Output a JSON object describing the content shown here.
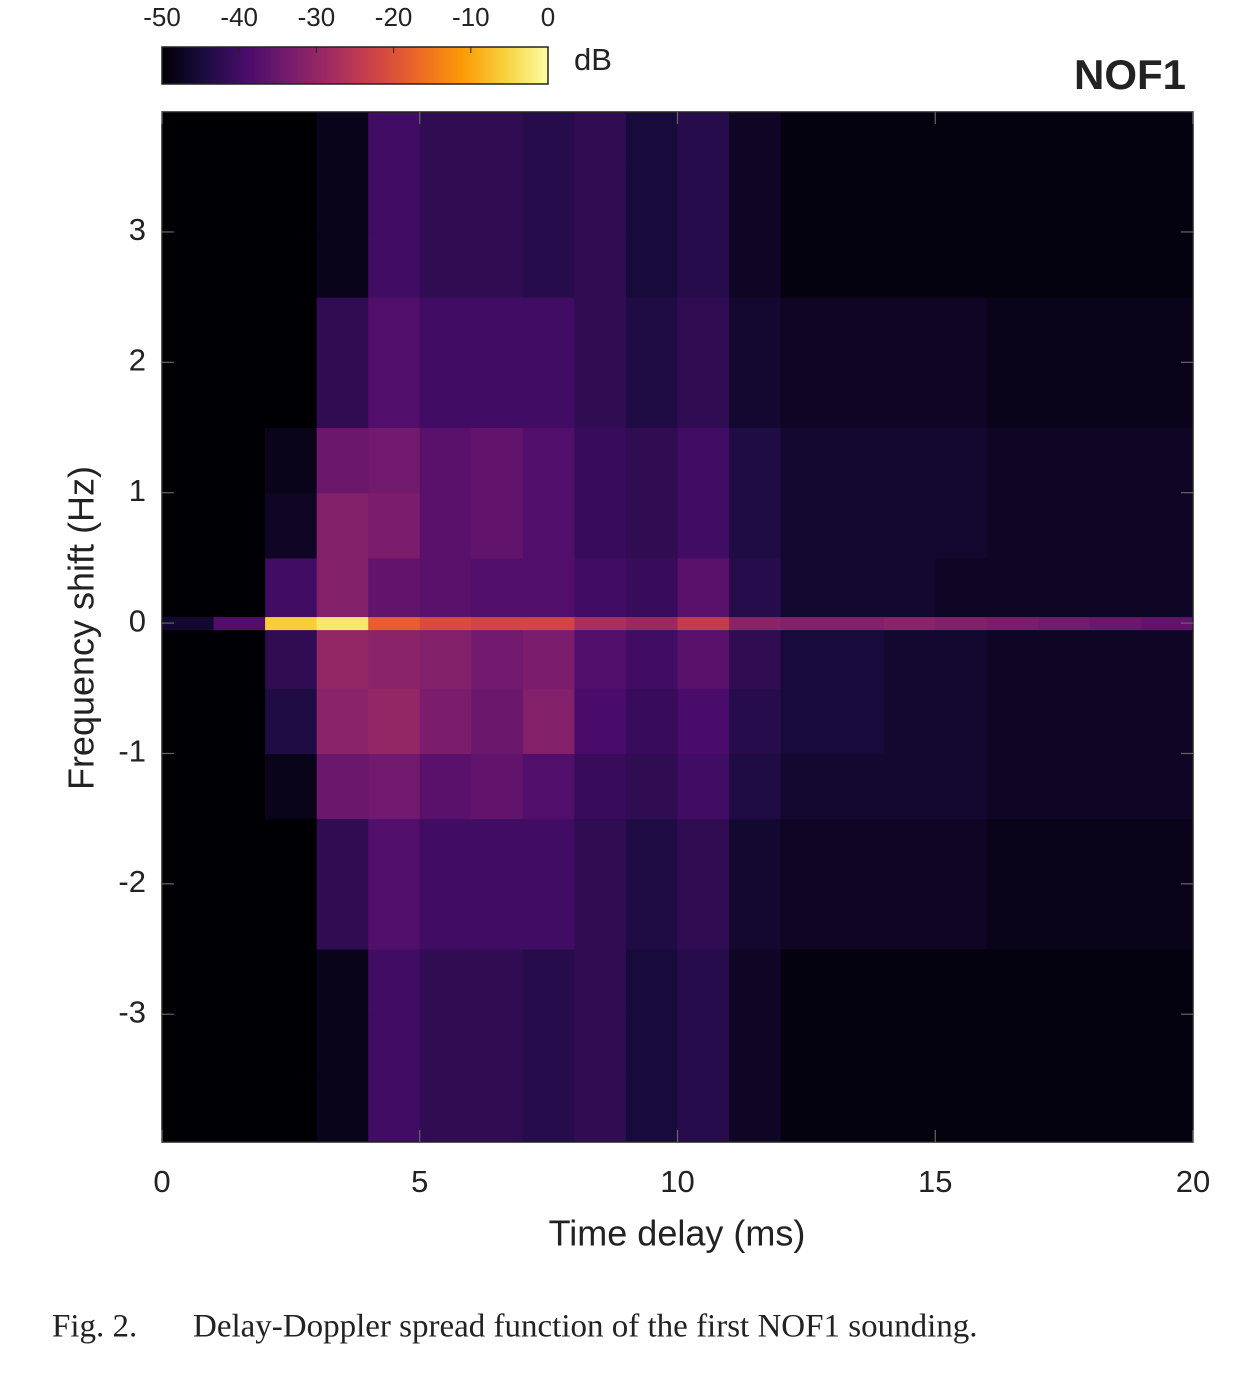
{
  "chart_data": {
    "type": "heatmap",
    "title": "NOF1",
    "x_label": "Time delay  (ms)",
    "y_label": "Frequency shift  (Hz)",
    "colorbar_label": "dB",
    "caption_number": "Fig. 2.",
    "caption": "Delay-Doppler spread function of the first NOF1 sounding.",
    "xlim": [
      0,
      20
    ],
    "xticks": [
      0,
      5,
      10,
      15,
      20
    ],
    "ylim": [
      -3.98,
      3.92
    ],
    "yticks": [
      -3,
      -2,
      -1,
      0,
      1,
      2,
      3
    ],
    "clim": [
      -50,
      0
    ],
    "cticks": [
      -50,
      -40,
      -30,
      -20,
      -10,
      0
    ],
    "colormap": [
      "#000004",
      "#1b0c41",
      "#4a0c6b",
      "#781c6d",
      "#a52c60",
      "#cf4446",
      "#ed6925",
      "#fb9b06",
      "#f7d13d",
      "#fcffa4"
    ],
    "x_edges": [
      0,
      1,
      2,
      3,
      4,
      5,
      6,
      7,
      8,
      9,
      10,
      11,
      12,
      13,
      14,
      15,
      16,
      17,
      18,
      19,
      20
    ],
    "y_edges": [
      -3.98,
      -3.5,
      -3,
      -2.5,
      -2,
      -1.5,
      -1,
      -0.5,
      -0.05,
      0.05,
      0.5,
      1,
      1.5,
      2,
      2.5,
      3,
      3.5,
      3.92
    ],
    "z": [
      [
        -50,
        -50,
        -50,
        -48,
        -40,
        -42,
        -42,
        -43,
        -42,
        -45,
        -43,
        -47,
        -49,
        -49,
        -49,
        -49,
        -49,
        -49,
        -49,
        -49
      ],
      [
        -50,
        -50,
        -50,
        -48,
        -40,
        -42,
        -42,
        -43,
        -42,
        -45,
        -43,
        -47,
        -49,
        -49,
        -49,
        -49,
        -49,
        -49,
        -49,
        -49
      ],
      [
        -50,
        -50,
        -50,
        -48,
        -40,
        -42,
        -42,
        -43,
        -42,
        -45,
        -43,
        -47,
        -49,
        -49,
        -49,
        -49,
        -49,
        -49,
        -49,
        -49
      ],
      [
        -50,
        -50,
        -50,
        -42,
        -38,
        -40,
        -40,
        -40,
        -42,
        -44,
        -42,
        -46,
        -47,
        -47,
        -47,
        -47,
        -48,
        -48,
        -48,
        -48
      ],
      [
        -50,
        -50,
        -50,
        -42,
        -38,
        -40,
        -40,
        -40,
        -42,
        -44,
        -42,
        -46,
        -47,
        -47,
        -47,
        -47,
        -48,
        -48,
        -48,
        -48
      ],
      [
        -50,
        -50,
        -48,
        -35,
        -34,
        -37,
        -36,
        -38,
        -41,
        -42,
        -40,
        -44,
        -46,
        -46,
        -46,
        -46,
        -47,
        -47,
        -47,
        -47
      ],
      [
        -50,
        -50,
        -44,
        -31,
        -30,
        -33,
        -35,
        -32,
        -39,
        -41,
        -39,
        -43,
        -45,
        -45,
        -46,
        -46,
        -47,
        -47,
        -47,
        -47
      ],
      [
        -50,
        -50,
        -42,
        -30,
        -31,
        -32,
        -34,
        -33,
        -38,
        -40,
        -37,
        -42,
        -45,
        -45,
        -46,
        -46,
        -47,
        -47,
        -47,
        -47
      ],
      [
        -46,
        -38,
        -6,
        -3,
        -18,
        -21,
        -22,
        -22,
        -27,
        -29,
        -24,
        -31,
        -32,
        -32,
        -31,
        -32,
        -33,
        -34,
        -35,
        -36
      ],
      [
        -50,
        -50,
        -40,
        -32,
        -36,
        -37,
        -38,
        -38,
        -40,
        -41,
        -37,
        -43,
        -46,
        -46,
        -46,
        -47,
        -47,
        -47,
        -47,
        -47
      ],
      [
        -50,
        -50,
        -47,
        -32,
        -33,
        -37,
        -36,
        -38,
        -41,
        -42,
        -40,
        -44,
        -46,
        -46,
        -46,
        -46,
        -47,
        -47,
        -47,
        -47
      ],
      [
        -50,
        -50,
        -48,
        -35,
        -34,
        -37,
        -36,
        -38,
        -41,
        -42,
        -40,
        -44,
        -46,
        -46,
        -46,
        -46,
        -47,
        -47,
        -47,
        -47
      ],
      [
        -50,
        -50,
        -50,
        -42,
        -38,
        -40,
        -40,
        -40,
        -42,
        -44,
        -42,
        -46,
        -47,
        -47,
        -47,
        -47,
        -48,
        -48,
        -48,
        -48
      ],
      [
        -50,
        -50,
        -50,
        -42,
        -38,
        -40,
        -40,
        -40,
        -42,
        -44,
        -42,
        -46,
        -47,
        -47,
        -47,
        -47,
        -48,
        -48,
        -48,
        -48
      ],
      [
        -50,
        -50,
        -50,
        -48,
        -40,
        -42,
        -42,
        -43,
        -42,
        -45,
        -43,
        -47,
        -49,
        -49,
        -49,
        -49,
        -49,
        -49,
        -49,
        -49
      ],
      [
        -50,
        -50,
        -50,
        -48,
        -40,
        -42,
        -42,
        -43,
        -42,
        -45,
        -43,
        -47,
        -49,
        -49,
        -49,
        -49,
        -49,
        -49,
        -49,
        -49
      ],
      [
        -50,
        -50,
        -50,
        -48,
        -40,
        -42,
        -42,
        -43,
        -42,
        -45,
        -43,
        -47,
        -49,
        -49,
        -49,
        -49,
        -49,
        -49,
        -49,
        -49
      ]
    ]
  }
}
